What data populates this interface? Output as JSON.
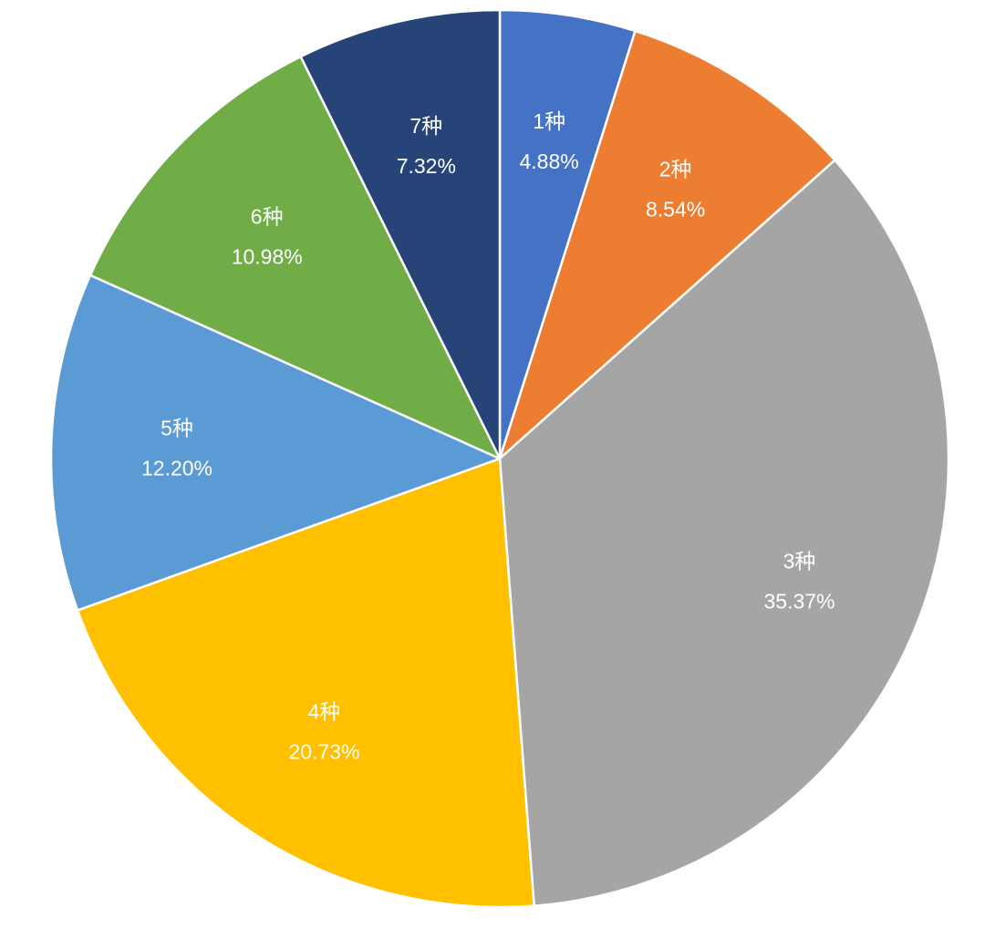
{
  "chart_data": {
    "type": "pie",
    "start_angle_deg": 0,
    "direction": "clockwise",
    "slice_border_color": "#ffffff",
    "slices": [
      {
        "label": "1种",
        "value": 4.88,
        "value_label": "4.88%",
        "color": "#4472C4"
      },
      {
        "label": "2种",
        "value": 8.54,
        "value_label": "8.54%",
        "color": "#ED7D31"
      },
      {
        "label": "3种",
        "value": 35.37,
        "value_label": "35.37%",
        "color": "#A5A5A5"
      },
      {
        "label": "4种",
        "value": 20.73,
        "value_label": "20.73%",
        "color": "#FFC000"
      },
      {
        "label": "5种",
        "value": 12.2,
        "value_label": "12.20%",
        "color": "#5B9BD5"
      },
      {
        "label": "6种",
        "value": 10.98,
        "value_label": "10.98%",
        "color": "#70AD47"
      },
      {
        "label": "7种",
        "value": 7.32,
        "value_label": "7.32%",
        "color": "#264478"
      }
    ]
  }
}
